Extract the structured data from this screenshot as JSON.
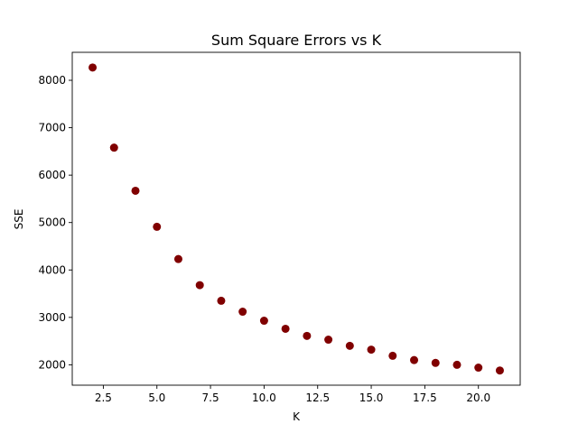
{
  "chart_data": {
    "type": "scatter",
    "title": "Sum Square Errors vs K",
    "xlabel": "K",
    "ylabel": "SSE",
    "xlim": [
      1.05,
      21.95
    ],
    "ylim": [
      1570,
      8590
    ],
    "x_ticks": [
      2.5,
      5.0,
      7.5,
      10.0,
      12.5,
      15.0,
      17.5,
      20.0
    ],
    "x_tick_labels": [
      "2.5",
      "5.0",
      "7.5",
      "10.0",
      "12.5",
      "15.0",
      "17.5",
      "20.0"
    ],
    "y_ticks": [
      2000,
      3000,
      4000,
      5000,
      6000,
      7000,
      8000
    ],
    "y_tick_labels": [
      "2000",
      "3000",
      "4000",
      "5000",
      "6000",
      "7000",
      "8000"
    ],
    "grid": false,
    "marker_color": "#800000",
    "series": [
      {
        "name": "SSE",
        "x": [
          2,
          3,
          4,
          5,
          6,
          7,
          8,
          9,
          10,
          11,
          12,
          13,
          14,
          15,
          16,
          17,
          18,
          19,
          20,
          21
        ],
        "y": [
          8270,
          6580,
          5670,
          4910,
          4230,
          3680,
          3350,
          3120,
          2930,
          2760,
          2610,
          2530,
          2400,
          2320,
          2190,
          2100,
          2040,
          2000,
          1940,
          1880
        ]
      }
    ]
  }
}
